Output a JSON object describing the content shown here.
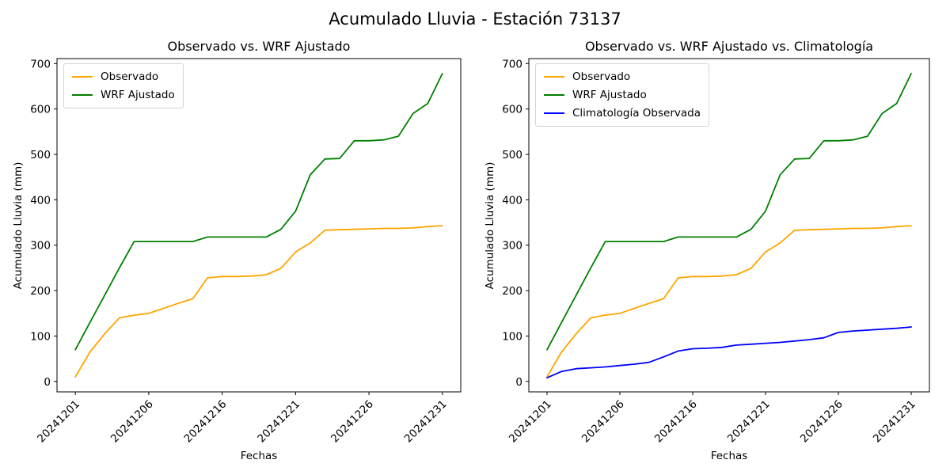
{
  "figure": {
    "title": "Acumulado Lluvia - Estación 73137",
    "background_color": "#ffffff"
  },
  "chart_data": [
    {
      "type": "line",
      "title": "Observado vs. WRF Ajustado",
      "xlabel": "Fechas",
      "ylabel": "Acumulado Lluvia (mm)",
      "x_type": "categorical-dates",
      "n_points": 26,
      "xtick_positions": [
        0,
        5,
        10,
        15,
        20,
        25
      ],
      "xtick_labels": [
        "20241201",
        "20241206",
        "20241216",
        "20241221",
        "20241226",
        "20241231"
      ],
      "yticks": [
        0,
        100,
        200,
        300,
        400,
        500,
        600,
        700
      ],
      "ylim": [
        -23,
        711
      ],
      "xlim": [
        -1.25,
        26.25
      ],
      "grid": false,
      "legend_position": "upper left",
      "series": [
        {
          "name": "Observado",
          "color": "#ffa500",
          "values": [
            10,
            65,
            105,
            140,
            146,
            150,
            161,
            172,
            182,
            228,
            231,
            231,
            232,
            235,
            249,
            285,
            305,
            333,
            334,
            335,
            336,
            337,
            337,
            338,
            341,
            343
          ]
        },
        {
          "name": "WRF Ajustado",
          "color": "#008000",
          "values": [
            70,
            130,
            190,
            250,
            308,
            308,
            308,
            308,
            308,
            318,
            318,
            318,
            318,
            318,
            335,
            375,
            455,
            490,
            491,
            530,
            530,
            532,
            540,
            590,
            612,
            678
          ]
        }
      ]
    },
    {
      "type": "line",
      "title": "Observado vs. WRF Ajustado vs. Climatología",
      "xlabel": "Fechas",
      "ylabel": "Acumulado Lluvia (mm)",
      "x_type": "categorical-dates",
      "n_points": 26,
      "xtick_positions": [
        0,
        5,
        10,
        15,
        20,
        25
      ],
      "xtick_labels": [
        "20241201",
        "20241206",
        "20241216",
        "20241221",
        "20241226",
        "20241231"
      ],
      "yticks": [
        0,
        100,
        200,
        300,
        400,
        500,
        600,
        700
      ],
      "ylim": [
        -23,
        711
      ],
      "xlim": [
        -1.25,
        26.25
      ],
      "grid": false,
      "legend_position": "upper left",
      "series": [
        {
          "name": "Observado",
          "color": "#ffa500",
          "values": [
            10,
            65,
            105,
            140,
            146,
            150,
            161,
            172,
            182,
            228,
            231,
            231,
            232,
            235,
            249,
            285,
            305,
            333,
            334,
            335,
            336,
            337,
            337,
            338,
            341,
            343
          ]
        },
        {
          "name": "WRF Ajustado",
          "color": "#008000",
          "values": [
            70,
            130,
            190,
            250,
            308,
            308,
            308,
            308,
            308,
            318,
            318,
            318,
            318,
            318,
            335,
            375,
            455,
            490,
            491,
            530,
            530,
            532,
            540,
            590,
            612,
            678
          ]
        },
        {
          "name": "Climatología Observada",
          "color": "#0000ff",
          "values": [
            8,
            22,
            28,
            30,
            32,
            35,
            38,
            42,
            54,
            67,
            72,
            73,
            75,
            80,
            82,
            84,
            86,
            89,
            92,
            96,
            108,
            111,
            113,
            115,
            117,
            120
          ]
        }
      ]
    }
  ]
}
